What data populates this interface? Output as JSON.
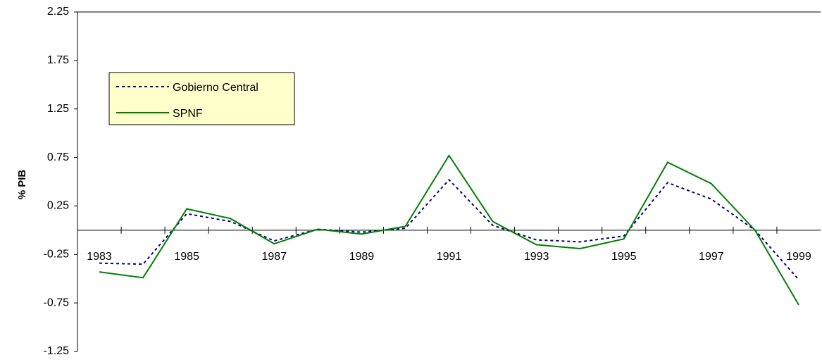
{
  "chart_data": {
    "type": "line",
    "categories": [
      "1983",
      null,
      "1985",
      null,
      "1987",
      null,
      "1989",
      null,
      "1991",
      null,
      "1993",
      null,
      "1995",
      null,
      "1997",
      null,
      "1999"
    ],
    "series": [
      {
        "name": "Gobierno Central",
        "color": "#000080",
        "dashed": true,
        "values": [
          -0.34,
          -0.35,
          0.17,
          0.09,
          -0.11,
          0.01,
          -0.02,
          0.02,
          0.52,
          0.05,
          -0.1,
          -0.12,
          -0.06,
          0.49,
          0.32,
          0,
          -0.51
        ]
      },
      {
        "name": "SPNF",
        "color": "#008000",
        "dashed": false,
        "values": [
          -0.43,
          -0.49,
          0.22,
          0.12,
          -0.14,
          0.01,
          -0.04,
          0.04,
          0.77,
          0.09,
          -0.15,
          -0.19,
          -0.09,
          0.7,
          0.48,
          0,
          -0.77
        ]
      }
    ],
    "y_label": "% PIB",
    "ylim": [
      -1.25,
      2.25
    ],
    "yticks": [
      -1.25,
      -0.75,
      -0.25,
      0.25,
      0.75,
      1.25,
      1.75,
      2.25
    ],
    "grid": false,
    "legend_position": "upper-left"
  }
}
